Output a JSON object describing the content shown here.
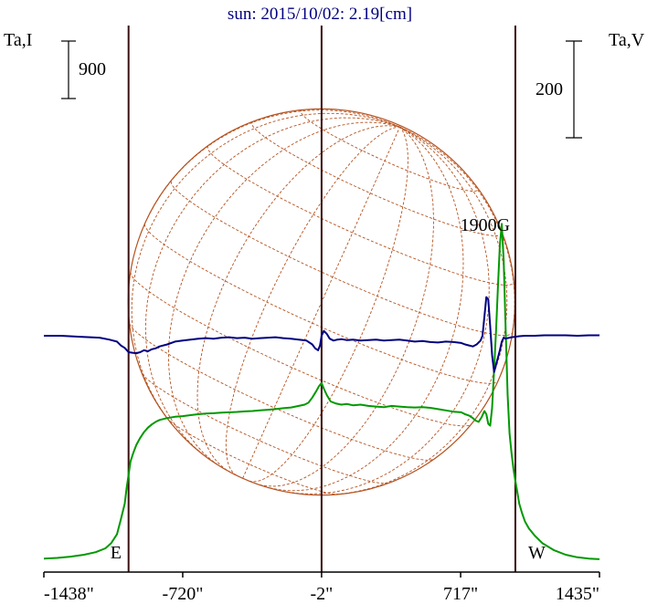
{
  "chart_data": {
    "type": "line",
    "title": "sun: 2015/10/02: 2.19[cm]",
    "left_axis_label": "Ta,I",
    "right_axis_label": "Ta,V",
    "left_scale_bar": "900",
    "right_scale_bar": "200",
    "x_ticks": [
      {
        "value": -1438,
        "label": "-1438\""
      },
      {
        "value": -720,
        "label": "-720\""
      },
      {
        "value": -2,
        "label": "-2\""
      },
      {
        "value": 717,
        "label": "717\""
      },
      {
        "value": 1435,
        "label": "1435\""
      }
    ],
    "xlim": [
      -1438,
      1435
    ],
    "limb_markers": [
      {
        "label": "E",
        "x": -1000
      },
      {
        "label": "W",
        "x": 1000
      }
    ],
    "center_marker": {
      "x": -2
    },
    "annotation": {
      "text": "1900G",
      "x": 800
    },
    "colors": {
      "intensity": "#009900",
      "polarization": "#000080",
      "disk": "#b5521f",
      "markers": "#3a1010",
      "title": "#000080"
    },
    "series": [
      {
        "key": "intensity",
        "y_unit": "left",
        "x": [
          -1438,
          -1370,
          -1300,
          -1230,
          -1170,
          -1120,
          -1090,
          -1060,
          -1040,
          -1020,
          -1010,
          -1000,
          -990,
          -975,
          -960,
          -940,
          -920,
          -900,
          -880,
          -860,
          -840,
          -800,
          -760,
          -720,
          -680,
          -640,
          -600,
          -560,
          -520,
          -480,
          -440,
          -400,
          -360,
          -320,
          -280,
          -240,
          -200,
          -160,
          -120,
          -90,
          -70,
          -50,
          -30,
          -15,
          -2,
          10,
          25,
          45,
          70,
          100,
          130,
          160,
          200,
          240,
          280,
          320,
          360,
          400,
          440,
          480,
          520,
          560,
          600,
          640,
          680,
          720,
          740,
          760,
          780,
          795,
          810,
          825,
          840,
          850,
          860,
          870,
          880,
          890,
          900,
          910,
          920,
          930,
          940,
          950,
          960,
          970,
          980,
          990,
          1000,
          1010,
          1020,
          1035,
          1050,
          1070,
          1100,
          1140,
          1200,
          1260,
          1320,
          1380,
          1435
        ],
        "y": [
          40,
          50,
          70,
          100,
          140,
          200,
          280,
          420,
          650,
          900,
          1150,
          1350,
          1560,
          1700,
          1820,
          1930,
          2020,
          2090,
          2140,
          2180,
          2210,
          2240,
          2260,
          2270,
          2285,
          2300,
          2310,
          2315,
          2325,
          2330,
          2335,
          2345,
          2350,
          2360,
          2370,
          2380,
          2395,
          2405,
          2430,
          2450,
          2480,
          2560,
          2660,
          2740,
          2790,
          2700,
          2600,
          2500,
          2470,
          2450,
          2460,
          2440,
          2450,
          2430,
          2420,
          2410,
          2430,
          2420,
          2410,
          2405,
          2410,
          2400,
          2380,
          2360,
          2340,
          2330,
          2300,
          2280,
          2240,
          2200,
          2180,
          2250,
          2350,
          2300,
          2150,
          2120,
          2400,
          3000,
          3600,
          4300,
          4950,
          5280,
          4700,
          3600,
          2600,
          2000,
          1700,
          1450,
          1260,
          1080,
          900,
          750,
          620,
          510,
          400,
          280,
          170,
          100,
          60,
          40,
          30
        ]
      },
      {
        "key": "polarization",
        "y_unit": "right",
        "x": [
          -1438,
          -1350,
          -1250,
          -1150,
          -1100,
          -1060,
          -1040,
          -1020,
          -1000,
          -980,
          -960,
          -940,
          -920,
          -900,
          -880,
          -860,
          -840,
          -800,
          -760,
          -720,
          -680,
          -640,
          -600,
          -560,
          -520,
          -480,
          -440,
          -400,
          -360,
          -320,
          -280,
          -240,
          -200,
          -160,
          -120,
          -80,
          -50,
          -35,
          -20,
          -10,
          -2,
          10,
          25,
          40,
          60,
          80,
          100,
          130,
          160,
          200,
          240,
          280,
          320,
          360,
          400,
          440,
          480,
          520,
          560,
          600,
          640,
          680,
          720,
          740,
          760,
          780,
          790,
          800,
          810,
          820,
          830,
          840,
          850,
          860,
          870,
          880,
          890,
          900,
          910,
          920,
          930,
          940,
          950,
          960,
          980,
          1000,
          1020,
          1050,
          1100,
          1150,
          1200,
          1260,
          1320,
          1380,
          1435
        ],
        "y": [
          0,
          0,
          -2,
          -4,
          -8,
          -12,
          -20,
          -25,
          -34,
          -35,
          -36,
          -34,
          -30,
          -32,
          -28,
          -26,
          -22,
          -18,
          -12,
          -10,
          -8,
          -6,
          -5,
          -6,
          -4,
          -3,
          -5,
          -4,
          -6,
          -5,
          -4,
          -3,
          -5,
          -6,
          -8,
          -10,
          -18,
          -26,
          -30,
          -20,
          0,
          10,
          4,
          -6,
          -10,
          -8,
          -7,
          -9,
          -8,
          -10,
          -9,
          -8,
          -10,
          -9,
          -8,
          -10,
          -12,
          -11,
          -13,
          -14,
          -12,
          -13,
          -15,
          -18,
          -20,
          -22,
          -20,
          -18,
          -14,
          -10,
          0,
          40,
          80,
          75,
          20,
          -40,
          -75,
          -60,
          -45,
          -30,
          -12,
          -4,
          -6,
          -5,
          -3,
          -2,
          -1,
          0,
          0,
          1,
          1,
          1,
          0,
          1,
          1
        ]
      }
    ],
    "grid": false,
    "legend": "none"
  }
}
